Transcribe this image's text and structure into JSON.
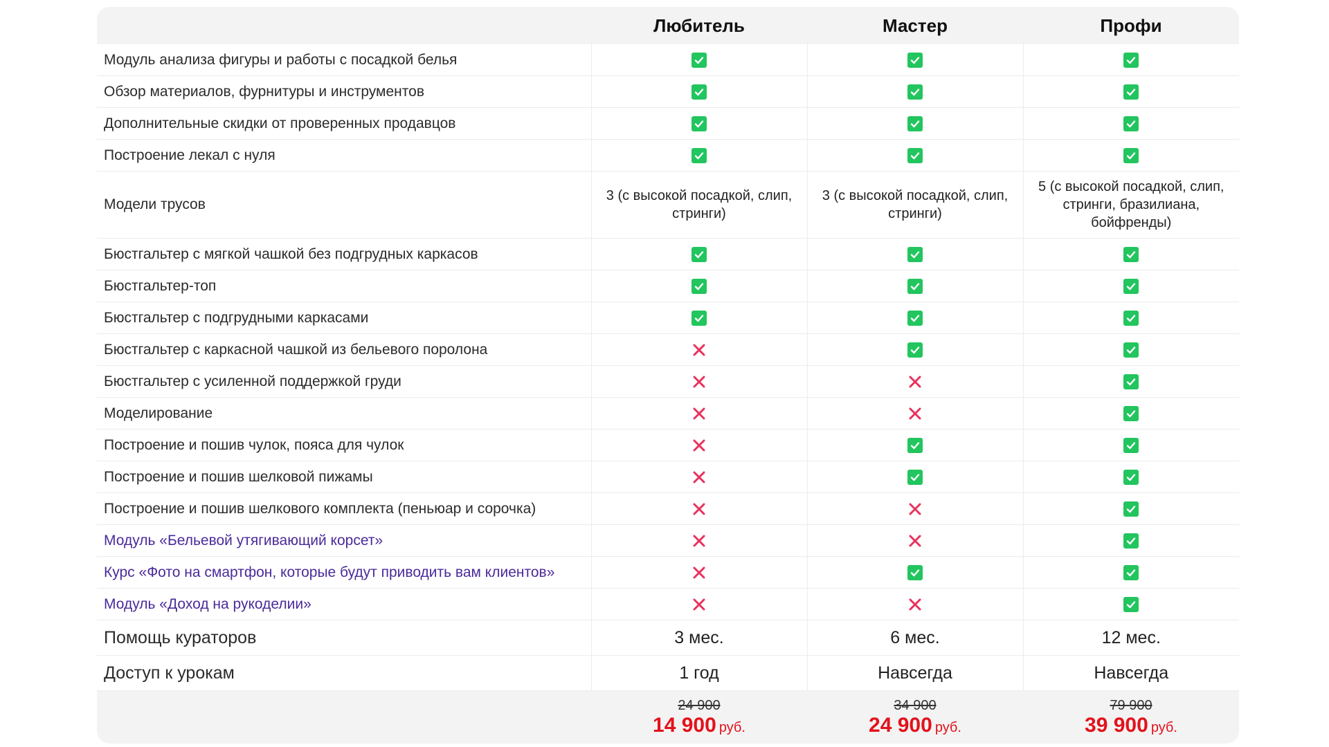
{
  "colors": {
    "check": "#22c55e",
    "cross": "#e8315c",
    "price": "#e3121b",
    "link": "#4b2a9a",
    "header_bg": "#f3f3f3"
  },
  "plans": [
    "Любитель",
    "Мастер",
    "Профи"
  ],
  "rows": [
    {
      "feature": "Модуль анализа фигуры и работы с посадкой белья",
      "link": false,
      "values": [
        "check",
        "check",
        "check"
      ]
    },
    {
      "feature": "Обзор материалов, фурнитуры и инструментов",
      "link": false,
      "values": [
        "check",
        "check",
        "check"
      ]
    },
    {
      "feature": "Дополнительные скидки от проверенных продавцов",
      "link": false,
      "values": [
        "check",
        "check",
        "check"
      ]
    },
    {
      "feature": "Построение лекал с нуля",
      "link": false,
      "values": [
        "check",
        "check",
        "check"
      ]
    },
    {
      "feature": "Модели трусов",
      "link": false,
      "tall": true,
      "values": [
        "3 (с высокой посадкой, слип, стринги)",
        "3 (с высокой посадкой, слип, стринги)",
        "5 (с высокой посадкой, слип, стринги, бразилиана, бойфренды)"
      ]
    },
    {
      "feature": "Бюстгальтер с мягкой чашкой без подгрудных каркасов",
      "link": false,
      "values": [
        "check",
        "check",
        "check"
      ]
    },
    {
      "feature": "Бюстгальтер-топ",
      "link": false,
      "values": [
        "check",
        "check",
        "check"
      ]
    },
    {
      "feature": "Бюстгальтер с подгрудными каркасами",
      "link": false,
      "values": [
        "check",
        "check",
        "check"
      ]
    },
    {
      "feature": "Бюстгальтер с каркасной чашкой из бельевого поролона",
      "link": false,
      "values": [
        "cross",
        "check",
        "check"
      ]
    },
    {
      "feature": "Бюстгальтер с усиленной поддержкой груди",
      "link": false,
      "values": [
        "cross",
        "cross",
        "check"
      ]
    },
    {
      "feature": "Моделирование",
      "link": false,
      "values": [
        "cross",
        "cross",
        "check"
      ]
    },
    {
      "feature": "Построение и пошив чулок, пояса для чулок",
      "link": false,
      "values": [
        "cross",
        "check",
        "check"
      ]
    },
    {
      "feature": "Построение и пошив шелковой пижамы",
      "link": false,
      "values": [
        "cross",
        "check",
        "check"
      ]
    },
    {
      "feature": "Построение и пошив шелкового комплекта (пеньюар и сорочка)",
      "link": false,
      "values": [
        "cross",
        "cross",
        "check"
      ]
    },
    {
      "feature": "Модуль «Бельевой утягивающий корсет»",
      "link": true,
      "values": [
        "cross",
        "cross",
        "check"
      ]
    },
    {
      "feature": "Курс «Фото на смартфон, которые будут приводить вам клиентов»",
      "link": true,
      "values": [
        "cross",
        "check",
        "check"
      ]
    },
    {
      "feature": "Модуль «Доход на рукоделии»",
      "link": true,
      "values": [
        "cross",
        "cross",
        "check"
      ]
    },
    {
      "feature": "Помощь кураторов",
      "link": false,
      "big": true,
      "values": [
        "3 мес.",
        "6 мес.",
        "12 мес."
      ]
    },
    {
      "feature": "Доступ к урокам",
      "link": false,
      "big": true,
      "values": [
        "1 год",
        "Навсегда",
        "Навсегда"
      ]
    }
  ],
  "prices": [
    {
      "old": "24 900",
      "new": "14 900",
      "currency": "руб."
    },
    {
      "old": "34 900",
      "new": "24 900",
      "currency": "руб."
    },
    {
      "old": "79 900",
      "new": "39 900",
      "currency": "руб."
    }
  ]
}
